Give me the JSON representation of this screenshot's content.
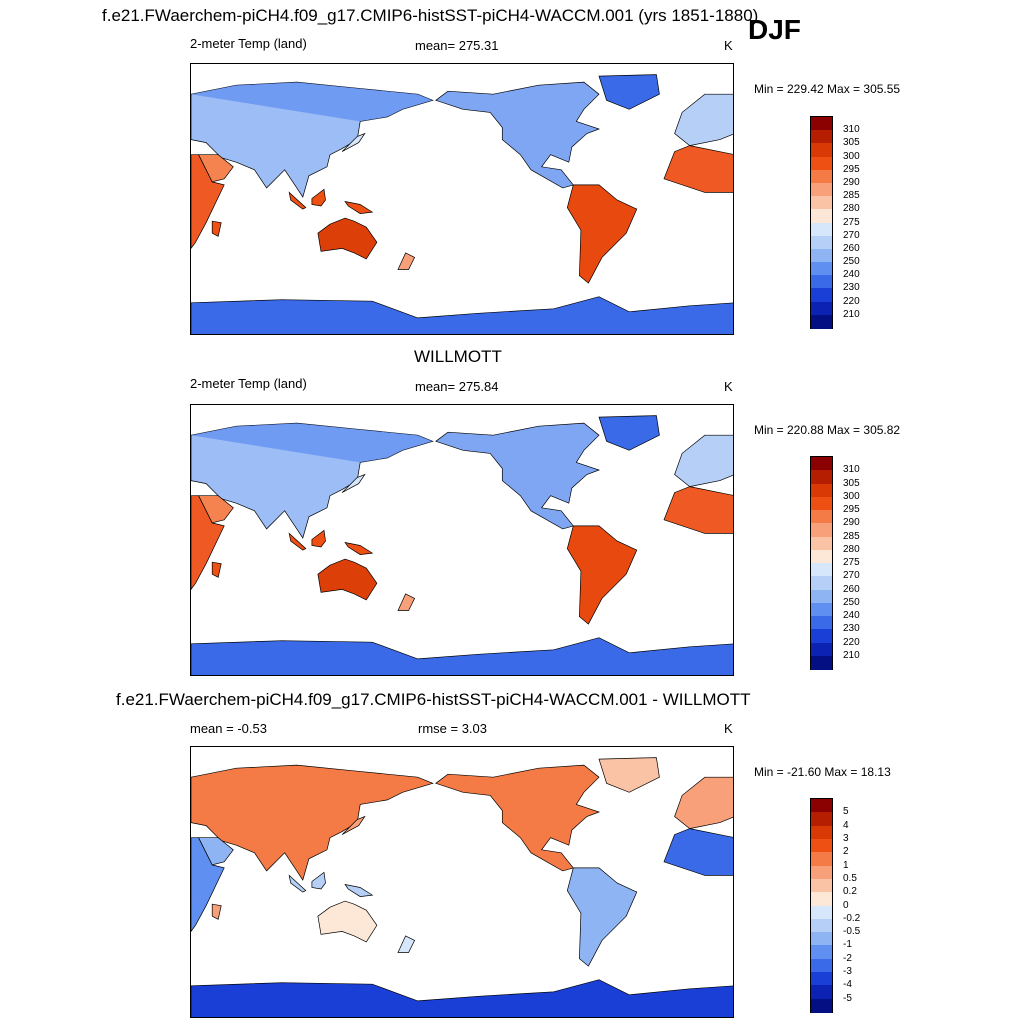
{
  "season": "DJF",
  "panels": [
    {
      "title": "f.e21.FWaerchem-piCH4.f09_g17.CMIP6-histSST-piCH4-WACCM.001 (yrs 1851-1880)",
      "left_label": "2-meter Temp (land)",
      "center_label": "mean= 275.31",
      "units": "K",
      "minmax": "Min = 229.42 Max = 305.55",
      "colorbar": {
        "labels": [
          "310",
          "305",
          "300",
          "295",
          "290",
          "285",
          "280",
          "275",
          "270",
          "260",
          "250",
          "240",
          "230",
          "220",
          "210"
        ],
        "colors": [
          "#8b0000",
          "#b51e00",
          "#d93a05",
          "#ee4f13",
          "#f47a46",
          "#f8a07a",
          "#fbc3a6",
          "#fde7d6",
          "#d6e6fb",
          "#b5cff7",
          "#8eb4f3",
          "#5f8ff0",
          "#3a6ae8",
          "#1a3fd6",
          "#0c22b2",
          "#030f83"
        ]
      },
      "field_kind": "absolute"
    },
    {
      "title": "WILLMOTT",
      "left_label": "2-meter Temp (land)",
      "center_label": "mean= 275.84",
      "units": "K",
      "minmax": "Min = 220.88 Max = 305.82",
      "colorbar": {
        "labels": [
          "310",
          "305",
          "300",
          "295",
          "290",
          "285",
          "280",
          "275",
          "270",
          "260",
          "250",
          "240",
          "230",
          "220",
          "210"
        ],
        "colors": [
          "#8b0000",
          "#b51e00",
          "#d93a05",
          "#ee4f13",
          "#f47a46",
          "#f8a07a",
          "#fbc3a6",
          "#fde7d6",
          "#d6e6fb",
          "#b5cff7",
          "#8eb4f3",
          "#5f8ff0",
          "#3a6ae8",
          "#1a3fd6",
          "#0c22b2",
          "#030f83"
        ]
      },
      "field_kind": "absolute"
    },
    {
      "title": "f.e21.FWaerchem-piCH4.f09_g17.CMIP6-histSST-piCH4-WACCM.001 - WILLMOTT",
      "left_label": "mean =  -0.53",
      "center_label": "rmse =   3.03",
      "units": "K",
      "minmax": "Min = -21.60 Max =  18.13",
      "colorbar": {
        "labels": [
          "5",
          "4",
          "3",
          "2",
          "1",
          "0.5",
          "0.2",
          "0",
          "-0.2",
          "-0.5",
          "-1",
          "-2",
          "-3",
          "-4",
          "-5"
        ],
        "colors": [
          "#8b0000",
          "#b51e00",
          "#d93a05",
          "#ee4f13",
          "#f47a46",
          "#f8a07a",
          "#fbc3a6",
          "#fde7d6",
          "#d6e6fb",
          "#b5cff7",
          "#8eb4f3",
          "#5f8ff0",
          "#3a6ae8",
          "#1a3fd6",
          "#0c22b2",
          "#030f83"
        ]
      },
      "field_kind": "difference"
    }
  ]
}
